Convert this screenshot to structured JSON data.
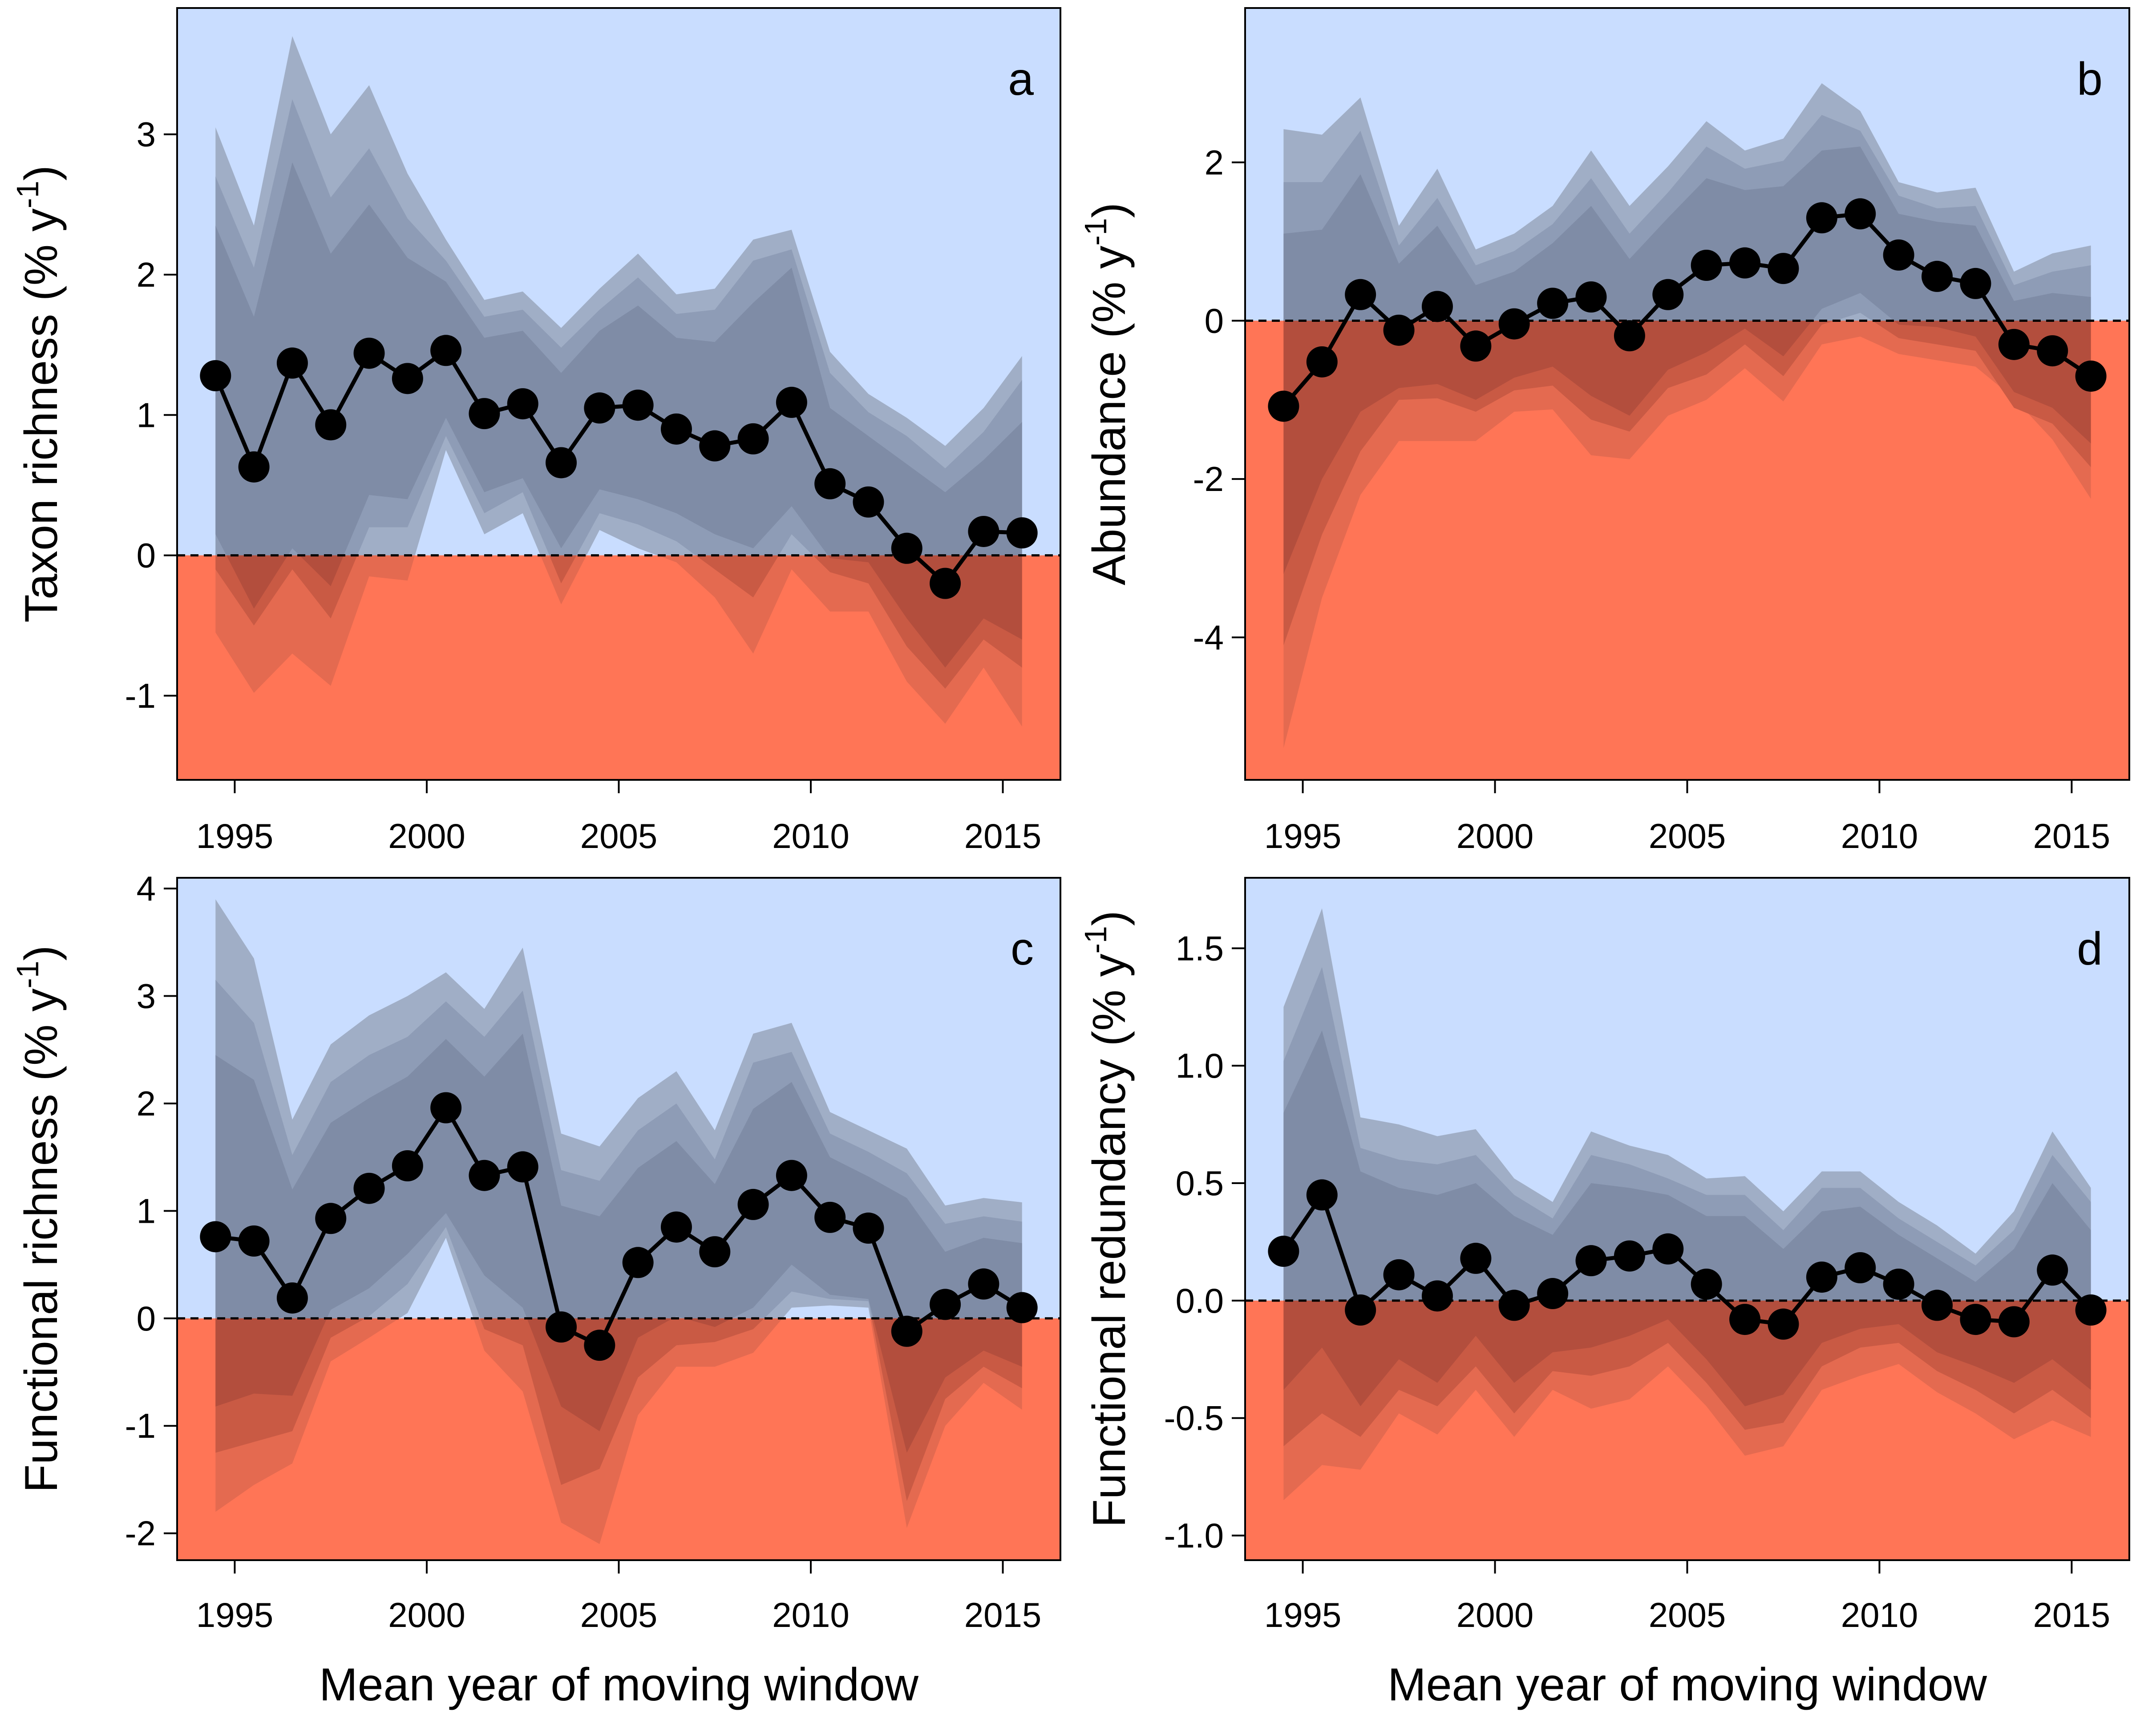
{
  "colors": {
    "positive_region": "#c9ddff",
    "negative_region": "#ff7556",
    "band_outer": "#a0aec6",
    "band_middle": "#8e9cb6",
    "band_inner": "#7f8ca6",
    "band_outer_neg": "#e46a50",
    "band_middle_neg": "#c95a44",
    "band_inner_neg": "#b34e3d",
    "line": "#000000"
  },
  "chart_data": [
    {
      "id": "a",
      "type": "line",
      "panel_label": "a",
      "xlabel": "",
      "ylabel": "Taxon richness (% y-1)",
      "ylabel_main": "Taxon richness (% y",
      "ylabel_sup": "-1",
      "ylabel_close": ")",
      "xlim": [
        1993.5,
        2016.5
      ],
      "ylim": [
        -1.6,
        3.9
      ],
      "xticks": [
        1995,
        2000,
        2005,
        2010,
        2015
      ],
      "yticks": [
        -1,
        0,
        1,
        2,
        3
      ],
      "x": [
        1994.5,
        1995.5,
        1996.5,
        1997.5,
        1998.5,
        1999.5,
        2000.5,
        2001.5,
        2002.5,
        2003.5,
        2004.5,
        2005.5,
        2006.5,
        2007.5,
        2008.5,
        2009.5,
        2010.5,
        2011.5,
        2012.5,
        2013.5,
        2014.5,
        2015.5
      ],
      "values": [
        1.28,
        0.63,
        1.37,
        0.93,
        1.44,
        1.26,
        1.46,
        1.01,
        1.08,
        0.66,
        1.05,
        1.07,
        0.9,
        0.78,
        0.83,
        1.09,
        0.51,
        0.38,
        0.05,
        -0.2,
        0.17,
        0.16
      ],
      "bands": {
        "outer_upper": [
          3.05,
          2.35,
          3.7,
          3.0,
          3.35,
          2.72,
          2.25,
          1.82,
          1.88,
          1.62,
          1.9,
          2.15,
          1.86,
          1.9,
          2.25,
          2.32,
          1.45,
          1.15,
          0.98,
          0.78,
          1.05,
          1.42
        ],
        "middle_upper": [
          2.7,
          2.05,
          3.25,
          2.55,
          2.9,
          2.4,
          2.1,
          1.7,
          1.75,
          1.48,
          1.75,
          1.98,
          1.72,
          1.75,
          2.1,
          2.18,
          1.3,
          1.02,
          0.85,
          0.62,
          0.88,
          1.25
        ],
        "inner_upper": [
          2.35,
          1.7,
          2.8,
          2.15,
          2.5,
          2.12,
          1.95,
          1.55,
          1.6,
          1.3,
          1.6,
          1.78,
          1.55,
          1.52,
          1.8,
          2.05,
          1.05,
          0.85,
          0.65,
          0.45,
          0.68,
          0.95
        ],
        "inner_lower": [
          0.15,
          -0.38,
          0.05,
          -0.22,
          0.43,
          0.4,
          0.98,
          0.45,
          0.55,
          0.05,
          0.47,
          0.4,
          0.3,
          0.15,
          0.05,
          0.35,
          -0.02,
          -0.05,
          -0.45,
          -0.8,
          -0.45,
          -0.6
        ],
        "middle_lower": [
          -0.1,
          -0.5,
          -0.1,
          -0.45,
          0.2,
          0.2,
          0.85,
          0.3,
          0.45,
          -0.2,
          0.3,
          0.22,
          0.1,
          -0.1,
          -0.3,
          0.15,
          -0.12,
          -0.2,
          -0.65,
          -0.95,
          -0.6,
          -0.8
        ],
        "outer_lower": [
          -0.55,
          -0.98,
          -0.7,
          -0.93,
          -0.15,
          -0.18,
          0.75,
          0.15,
          0.3,
          -0.35,
          0.18,
          0.05,
          -0.05,
          -0.3,
          -0.7,
          -0.1,
          -0.4,
          -0.4,
          -0.9,
          -1.2,
          -0.8,
          -1.22
        ]
      }
    },
    {
      "id": "b",
      "type": "line",
      "panel_label": "b",
      "xlabel": "",
      "ylabel": "Abundance (% y-1)",
      "ylabel_main": "Abundance (% y",
      "ylabel_sup": "-1",
      "ylabel_close": ")",
      "xlim": [
        1993.5,
        2016.5
      ],
      "ylim": [
        -5.8,
        3.95
      ],
      "xticks": [
        1995,
        2000,
        2005,
        2010,
        2015
      ],
      "yticks": [
        -4,
        -2,
        0,
        2
      ],
      "x": [
        1994.5,
        1995.5,
        1996.5,
        1997.5,
        1998.5,
        1999.5,
        2000.5,
        2001.5,
        2002.5,
        2003.5,
        2004.5,
        2005.5,
        2006.5,
        2007.5,
        2008.5,
        2009.5,
        2010.5,
        2011.5,
        2012.5,
        2013.5,
        2014.5,
        2015.5
      ],
      "values": [
        -1.08,
        -0.52,
        0.33,
        -0.12,
        0.18,
        -0.32,
        -0.04,
        0.22,
        0.3,
        -0.19,
        0.33,
        0.7,
        0.73,
        0.66,
        1.3,
        1.35,
        0.83,
        0.56,
        0.47,
        -0.3,
        -0.38,
        -0.7
      ],
      "bands": {
        "outer_upper": [
          2.42,
          2.35,
          2.82,
          1.2,
          1.92,
          0.9,
          1.1,
          1.45,
          2.15,
          1.45,
          1.95,
          2.52,
          2.15,
          2.3,
          3.0,
          2.65,
          1.75,
          1.62,
          1.68,
          0.62,
          0.85,
          0.95
        ],
        "middle_upper": [
          1.75,
          1.75,
          2.4,
          0.95,
          1.55,
          0.7,
          0.88,
          1.22,
          1.8,
          1.1,
          1.62,
          2.2,
          1.92,
          2.02,
          2.6,
          2.4,
          1.58,
          1.42,
          1.45,
          0.45,
          0.62,
          0.7
        ],
        "inner_upper": [
          1.1,
          1.15,
          1.85,
          0.72,
          1.2,
          0.45,
          0.62,
          0.98,
          1.45,
          0.78,
          1.3,
          1.8,
          1.65,
          1.7,
          2.15,
          2.2,
          1.35,
          1.25,
          1.2,
          0.25,
          0.35,
          0.3
        ],
        "inner_lower": [
          -3.2,
          -2.0,
          -1.15,
          -0.85,
          -0.8,
          -1.0,
          -0.72,
          -0.58,
          -0.95,
          -1.2,
          -0.62,
          -0.4,
          -0.1,
          -0.45,
          0.15,
          0.35,
          -0.05,
          -0.08,
          -0.2,
          -0.9,
          -1.1,
          -1.55
        ],
        "middle_lower": [
          -4.1,
          -2.7,
          -1.65,
          -1.0,
          -0.98,
          -1.15,
          -0.88,
          -0.82,
          -1.25,
          -1.4,
          -0.85,
          -0.68,
          -0.3,
          -0.7,
          -0.05,
          0.1,
          -0.22,
          -0.3,
          -0.38,
          -1.1,
          -1.3,
          -1.85
        ],
        "outer_lower": [
          -5.4,
          -3.5,
          -2.2,
          -1.52,
          -1.52,
          -1.52,
          -1.15,
          -1.12,
          -1.7,
          -1.75,
          -1.2,
          -1.0,
          -0.6,
          -1.02,
          -0.3,
          -0.2,
          -0.42,
          -0.5,
          -0.58,
          -0.98,
          -1.5,
          -2.25
        ]
      }
    },
    {
      "id": "c",
      "type": "line",
      "panel_label": "c",
      "xlabel": "Mean year of moving window",
      "ylabel": "Functional richness (% y-1)",
      "ylabel_main": "Functional richness (% y",
      "ylabel_sup": "-1",
      "ylabel_close": ")",
      "xlim": [
        1993.5,
        2016.5
      ],
      "ylim": [
        -2.25,
        4.1
      ],
      "xticks": [
        1995,
        2000,
        2005,
        2010,
        2015
      ],
      "yticks": [
        -2,
        -1,
        0,
        1,
        2,
        3,
        4
      ],
      "x": [
        1994.5,
        1995.5,
        1996.5,
        1997.5,
        1998.5,
        1999.5,
        2000.5,
        2001.5,
        2002.5,
        2003.5,
        2004.5,
        2005.5,
        2006.5,
        2007.5,
        2008.5,
        2009.5,
        2010.5,
        2011.5,
        2012.5,
        2013.5,
        2014.5,
        2015.5
      ],
      "values": [
        0.76,
        0.72,
        0.19,
        0.93,
        1.21,
        1.42,
        1.96,
        1.33,
        1.41,
        -0.08,
        -0.25,
        0.52,
        0.85,
        0.62,
        1.06,
        1.33,
        0.94,
        0.84,
        -0.12,
        0.13,
        0.32,
        0.1
      ],
      "bands": {
        "outer_upper": [
          3.9,
          3.35,
          1.85,
          2.55,
          2.82,
          3.0,
          3.22,
          2.88,
          3.45,
          1.72,
          1.6,
          2.05,
          2.3,
          1.75,
          2.65,
          2.75,
          1.92,
          1.75,
          1.58,
          1.05,
          1.12,
          1.08
        ],
        "middle_upper": [
          3.15,
          2.75,
          1.52,
          2.2,
          2.45,
          2.62,
          2.95,
          2.62,
          3.05,
          1.38,
          1.28,
          1.75,
          2.0,
          1.48,
          2.38,
          2.48,
          1.72,
          1.55,
          1.35,
          0.88,
          0.95,
          0.9
        ],
        "inner_upper": [
          2.45,
          2.22,
          1.2,
          1.82,
          2.05,
          2.25,
          2.6,
          2.25,
          2.65,
          1.05,
          0.95,
          1.4,
          1.65,
          1.25,
          1.95,
          2.2,
          1.5,
          1.32,
          1.12,
          0.62,
          0.75,
          0.7
        ],
        "inner_lower": [
          -0.82,
          -0.7,
          -0.72,
          0.08,
          0.28,
          0.6,
          0.98,
          0.4,
          0.1,
          -0.82,
          -1.05,
          -0.18,
          0.02,
          -0.08,
          0.1,
          0.5,
          0.22,
          0.18,
          -1.25,
          -0.55,
          -0.3,
          -0.45
        ],
        "middle_lower": [
          -1.25,
          -1.15,
          -1.05,
          -0.18,
          0.02,
          0.32,
          0.85,
          -0.1,
          -0.25,
          -1.55,
          -1.4,
          -0.55,
          -0.25,
          -0.22,
          -0.1,
          0.25,
          0.18,
          0.16,
          -1.7,
          -0.75,
          -0.45,
          -0.65
        ],
        "outer_lower": [
          -1.8,
          -1.55,
          -1.35,
          -0.4,
          -0.18,
          0.05,
          0.75,
          -0.3,
          -0.68,
          -1.9,
          -2.1,
          -0.9,
          -0.45,
          -0.45,
          -0.32,
          0.1,
          0.12,
          0.1,
          -1.95,
          -1.0,
          -0.6,
          -0.85
        ]
      }
    },
    {
      "id": "d",
      "type": "line",
      "panel_label": "d",
      "xlabel": "Mean year of moving window",
      "ylabel": "Functional redundancy (% y-1)",
      "ylabel_main": "Functional redundancy (% y",
      "ylabel_sup": "-1",
      "ylabel_close": ")",
      "xlim": [
        1993.5,
        2016.5
      ],
      "ylim": [
        -1.105,
        1.8
      ],
      "xticks": [
        1995,
        2000,
        2005,
        2010,
        2015
      ],
      "yticks": [
        -1.0,
        -0.5,
        0.0,
        0.5,
        1.0,
        1.5
      ],
      "ytick_labels": [
        "-1.0",
        "-0.5",
        "0.0",
        "0.5",
        "1.0",
        "1.5"
      ],
      "x": [
        1994.5,
        1995.5,
        1996.5,
        1997.5,
        1998.5,
        1999.5,
        2000.5,
        2001.5,
        2002.5,
        2003.5,
        2004.5,
        2005.5,
        2006.5,
        2007.5,
        2008.5,
        2009.5,
        2010.5,
        2011.5,
        2012.5,
        2013.5,
        2014.5,
        2015.5
      ],
      "values": [
        0.21,
        0.45,
        -0.04,
        0.11,
        0.02,
        0.18,
        -0.02,
        0.03,
        0.17,
        0.19,
        0.22,
        0.07,
        -0.08,
        -0.1,
        0.1,
        0.14,
        0.07,
        -0.02,
        -0.08,
        -0.09,
        0.13,
        -0.04
      ],
      "bands": {
        "outer_upper": [
          1.25,
          1.67,
          0.78,
          0.75,
          0.7,
          0.73,
          0.52,
          0.42,
          0.72,
          0.66,
          0.62,
          0.52,
          0.53,
          0.38,
          0.55,
          0.55,
          0.42,
          0.32,
          0.2,
          0.38,
          0.72,
          0.48
        ],
        "middle_upper": [
          1.02,
          1.42,
          0.65,
          0.6,
          0.58,
          0.62,
          0.45,
          0.35,
          0.62,
          0.58,
          0.52,
          0.45,
          0.45,
          0.3,
          0.48,
          0.48,
          0.35,
          0.25,
          0.15,
          0.3,
          0.62,
          0.42
        ],
        "inner_upper": [
          0.8,
          1.15,
          0.55,
          0.48,
          0.45,
          0.5,
          0.36,
          0.28,
          0.5,
          0.48,
          0.45,
          0.36,
          0.36,
          0.22,
          0.38,
          0.4,
          0.28,
          0.18,
          0.08,
          0.22,
          0.5,
          0.3
        ],
        "inner_lower": [
          -0.38,
          -0.2,
          -0.45,
          -0.25,
          -0.35,
          -0.15,
          -0.35,
          -0.22,
          -0.2,
          -0.15,
          -0.08,
          -0.25,
          -0.45,
          -0.4,
          -0.18,
          -0.12,
          -0.1,
          -0.22,
          -0.28,
          -0.35,
          -0.25,
          -0.38
        ],
        "middle_lower": [
          -0.62,
          -0.48,
          -0.58,
          -0.38,
          -0.45,
          -0.28,
          -0.48,
          -0.3,
          -0.32,
          -0.28,
          -0.18,
          -0.35,
          -0.55,
          -0.52,
          -0.28,
          -0.2,
          -0.18,
          -0.3,
          -0.38,
          -0.48,
          -0.38,
          -0.5
        ],
        "outer_lower": [
          -0.85,
          -0.7,
          -0.72,
          -0.48,
          -0.57,
          -0.38,
          -0.58,
          -0.38,
          -0.46,
          -0.42,
          -0.28,
          -0.45,
          -0.66,
          -0.62,
          -0.38,
          -0.32,
          -0.27,
          -0.39,
          -0.48,
          -0.59,
          -0.51,
          -0.58
        ]
      }
    }
  ]
}
